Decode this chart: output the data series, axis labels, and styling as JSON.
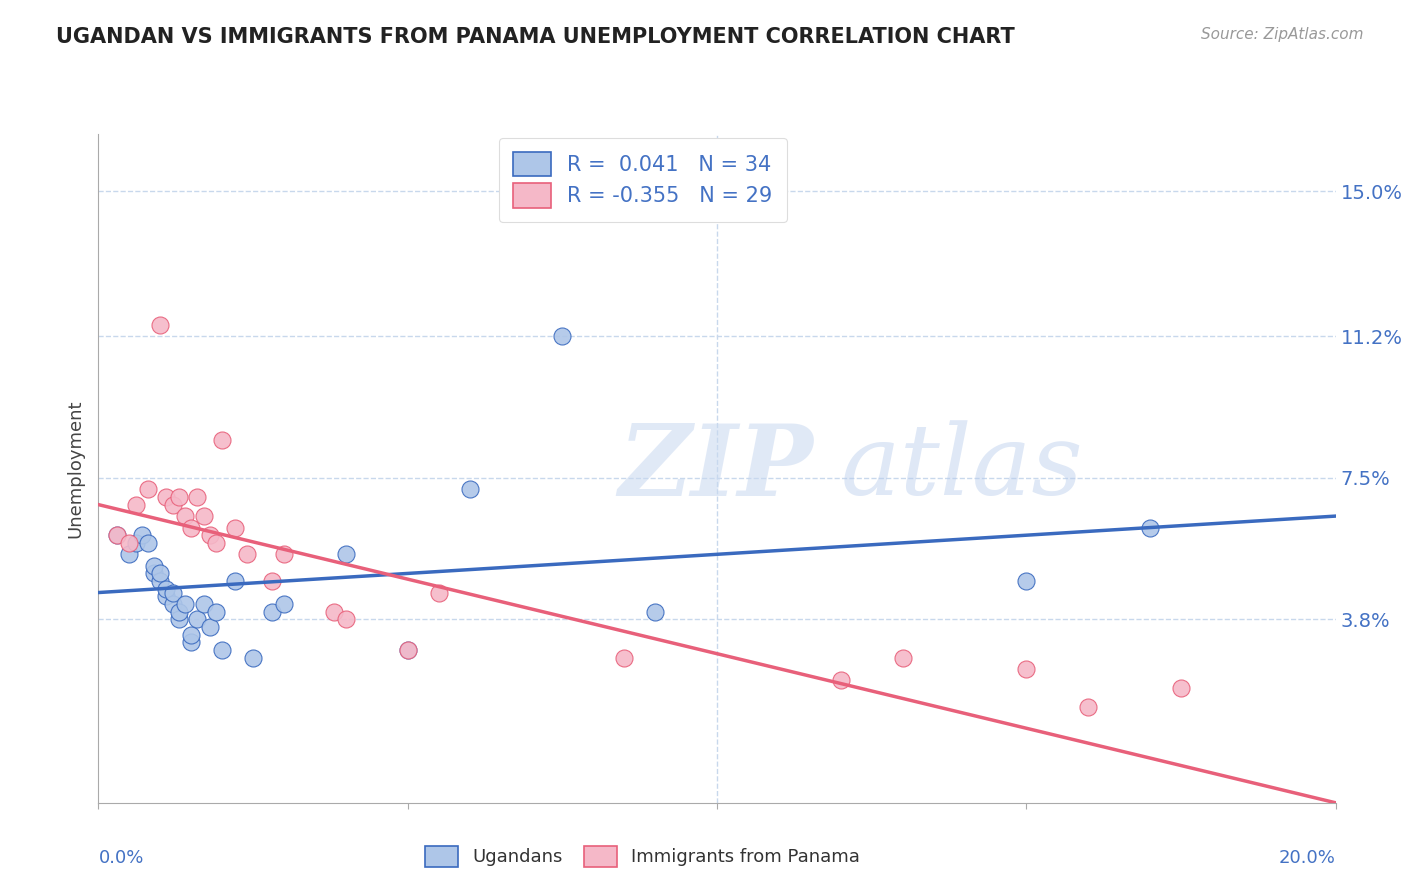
{
  "title": "UGANDAN VS IMMIGRANTS FROM PANAMA UNEMPLOYMENT CORRELATION CHART",
  "source": "Source: ZipAtlas.com",
  "ylabel": "Unemployment",
  "xlim": [
    0.0,
    0.2
  ],
  "ylim": [
    -0.01,
    0.165
  ],
  "blue_R": "0.041",
  "blue_N": "34",
  "pink_R": "-0.355",
  "pink_N": "29",
  "blue_color": "#aec6e8",
  "pink_color": "#f5b8c8",
  "blue_line_color": "#3a6abf",
  "pink_line_color": "#e8607a",
  "tick_label_color": "#4472c4",
  "grid_color": "#c8d8ec",
  "watermark_color": "#dce8f5",
  "yticks": [
    0.0,
    0.038,
    0.075,
    0.112,
    0.15
  ],
  "ytick_labels": [
    "",
    "3.8%",
    "7.5%",
    "11.2%",
    "15.0%"
  ],
  "blue_scatter_x": [
    0.003,
    0.005,
    0.006,
    0.007,
    0.008,
    0.009,
    0.009,
    0.01,
    0.01,
    0.011,
    0.011,
    0.012,
    0.012,
    0.013,
    0.013,
    0.014,
    0.015,
    0.015,
    0.016,
    0.017,
    0.018,
    0.019,
    0.02,
    0.022,
    0.025,
    0.028,
    0.03,
    0.04,
    0.05,
    0.06,
    0.075,
    0.09,
    0.15,
    0.17
  ],
  "blue_scatter_y": [
    0.06,
    0.055,
    0.058,
    0.06,
    0.058,
    0.05,
    0.052,
    0.048,
    0.05,
    0.044,
    0.046,
    0.042,
    0.045,
    0.038,
    0.04,
    0.042,
    0.032,
    0.034,
    0.038,
    0.042,
    0.036,
    0.04,
    0.03,
    0.048,
    0.028,
    0.04,
    0.042,
    0.055,
    0.03,
    0.072,
    0.112,
    0.04,
    0.048,
    0.062
  ],
  "pink_scatter_x": [
    0.003,
    0.005,
    0.006,
    0.008,
    0.01,
    0.011,
    0.012,
    0.013,
    0.014,
    0.015,
    0.016,
    0.017,
    0.018,
    0.019,
    0.02,
    0.022,
    0.024,
    0.028,
    0.03,
    0.038,
    0.04,
    0.05,
    0.055,
    0.085,
    0.12,
    0.13,
    0.15,
    0.16,
    0.175
  ],
  "pink_scatter_y": [
    0.06,
    0.058,
    0.068,
    0.072,
    0.115,
    0.07,
    0.068,
    0.07,
    0.065,
    0.062,
    0.07,
    0.065,
    0.06,
    0.058,
    0.085,
    0.062,
    0.055,
    0.048,
    0.055,
    0.04,
    0.038,
    0.03,
    0.045,
    0.028,
    0.022,
    0.028,
    0.025,
    0.015,
    0.02
  ],
  "blue_trendline_x": [
    0.0,
    0.2
  ],
  "blue_trendline_y": [
    0.045,
    0.065
  ],
  "pink_trendline_x": [
    0.0,
    0.2
  ],
  "pink_trendline_y": [
    0.068,
    -0.01
  ]
}
